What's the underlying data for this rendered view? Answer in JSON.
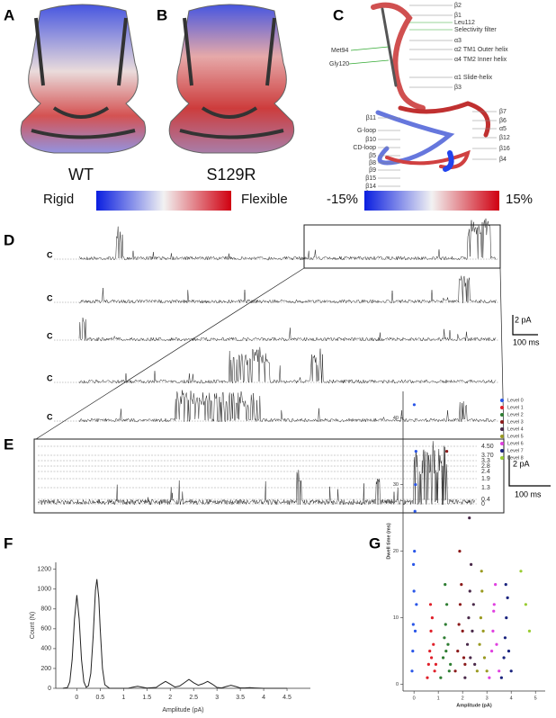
{
  "panel_labels": [
    "A",
    "B",
    "C",
    "D",
    "E",
    "F",
    "G"
  ],
  "structures": {
    "wt": "WT",
    "mutant": "S129R"
  },
  "colorbars": {
    "rigid": "Rigid",
    "flexible": "Flexible",
    "min": "-15%",
    "max": "15%"
  },
  "topology_labels": {
    "right": [
      "β2",
      "β1",
      "Leu112",
      "Selectivity filter",
      "α3",
      "α2 TM1 Outer helix",
      "α4 TM2 Inner helix",
      "α1 Slide-helix",
      "β3"
    ],
    "left_top": [
      "Met94",
      "Gly120"
    ],
    "left": [
      "β11",
      "G-loop",
      "β10",
      "CD-loop",
      "β5",
      "β8",
      "β9",
      "β15",
      "β14",
      "β13"
    ],
    "right_low": [
      "β7",
      "β6",
      "α5",
      "β12",
      "β16",
      "β4"
    ]
  },
  "traces": {
    "closed": "C",
    "scale_current": "2 pA",
    "scale_time": "100 ms"
  },
  "levels": [
    "4.50",
    "3.70",
    "3.3",
    "2.8",
    "2.4",
    "1.9",
    "1.3",
    "0.4",
    "0"
  ],
  "chart_data": [
    {
      "type": "line",
      "xlabel": "Amplitude (pA)",
      "ylabel": "Count (N)",
      "color": "#222",
      "x": [
        -0.3,
        -0.2,
        -0.15,
        -0.1,
        -0.05,
        0,
        0.05,
        0.1,
        0.15,
        0.2,
        0.25,
        0.3,
        0.35,
        0.4,
        0.43,
        0.47,
        0.5,
        0.55,
        0.6,
        0.7,
        0.9,
        1.1,
        1.2,
        1.3,
        1.4,
        1.5,
        1.7,
        1.8,
        1.9,
        2.0,
        2.1,
        2.2,
        2.3,
        2.4,
        2.5,
        2.6,
        2.7,
        2.8,
        2.9,
        3.0,
        3.1,
        3.2,
        3.3,
        3.4,
        3.5,
        3.6,
        3.7,
        3.8,
        4.0,
        4.5
      ],
      "values": [
        0,
        8,
        66,
        289,
        699,
        940,
        699,
        289,
        66,
        10,
        25,
        149,
        516,
        989,
        1100,
        910,
        616,
        200,
        36,
        0,
        0,
        0,
        12,
        20,
        12,
        3,
        9,
        42,
        70,
        43,
        13,
        23,
        55,
        90,
        56,
        31,
        46,
        70,
        42,
        9,
        4,
        18,
        30,
        18,
        4,
        4,
        6,
        4,
        0,
        0
      ],
      "xlim": [
        -0.45,
        5
      ],
      "ylim": [
        0,
        1270
      ],
      "xticks": [
        0,
        0.5,
        1,
        1.5,
        2,
        2.5,
        3,
        3.5,
        4,
        4.5
      ],
      "yticks": [
        0,
        200,
        400,
        600,
        800,
        1000,
        1200
      ]
    },
    {
      "type": "scatter",
      "xlabel": "Amplitude (pA)",
      "ylabel": "Dwell time (ms)",
      "legend": "upper right",
      "xlim": [
        -0.45,
        5.4
      ],
      "ylim": [
        -1,
        44
      ],
      "xticks": [
        0,
        1,
        2,
        3,
        4,
        5
      ],
      "yticks": [
        0,
        10,
        20,
        30,
        40
      ],
      "series": [
        {
          "name": "Level 0",
          "color": "#2a56e8",
          "x": [
            -0.08,
            -0.05,
            -0.03,
            0,
            0.02,
            0.04,
            0.06,
            0.08,
            0.1,
            -0.02,
            0.01,
            0.05
          ],
          "values": [
            2,
            5,
            9,
            14,
            20,
            26,
            30,
            35,
            12,
            18,
            42,
            8
          ]
        },
        {
          "name": "Level 1",
          "color": "#e0202a",
          "x": [
            0.55,
            0.6,
            0.65,
            0.7,
            0.75,
            0.8,
            0.85,
            0.68,
            0.72,
            0.9
          ],
          "values": [
            1,
            3,
            5,
            8,
            10,
            6,
            2,
            12,
            4,
            3
          ]
        },
        {
          "name": "Level 2",
          "color": "#2e7d32",
          "x": [
            1.1,
            1.2,
            1.25,
            1.3,
            1.35,
            1.4,
            1.5,
            1.28,
            1.45,
            1.32
          ],
          "values": [
            1,
            4,
            7,
            9,
            12,
            6,
            3,
            15,
            2,
            5
          ]
        },
        {
          "name": "Level 3",
          "color": "#8b1a1a",
          "x": [
            1.7,
            1.8,
            1.85,
            1.9,
            1.95,
            2.0,
            2.1,
            1.88,
            1.35,
            2.05
          ],
          "values": [
            2,
            5,
            9,
            12,
            15,
            8,
            3,
            20,
            35,
            4
          ]
        },
        {
          "name": "Level 4",
          "color": "#4a2a4a",
          "x": [
            2.1,
            2.2,
            2.25,
            2.3,
            2.35,
            2.4,
            2.5,
            2.28,
            2.32,
            2.45
          ],
          "values": [
            1,
            6,
            10,
            14,
            18,
            8,
            3,
            25,
            4,
            12
          ]
        },
        {
          "name": "Level 5",
          "color": "#9a9a20",
          "x": [
            2.6,
            2.7,
            2.75,
            2.8,
            2.85,
            2.9,
            3.0,
            2.78
          ],
          "values": [
            2,
            6,
            10,
            14,
            8,
            4,
            2,
            17
          ]
        },
        {
          "name": "Level 6",
          "color": "#e040e0",
          "x": [
            3.1,
            3.2,
            3.25,
            3.3,
            3.35,
            3.4,
            3.5,
            3.28
          ],
          "values": [
            1,
            5,
            8,
            12,
            15,
            6,
            2,
            11
          ]
        },
        {
          "name": "Level 7",
          "color": "#1a237e",
          "x": [
            3.6,
            3.7,
            3.75,
            3.8,
            3.85,
            3.9,
            4.0,
            3.78
          ],
          "values": [
            1,
            4,
            7,
            10,
            13,
            5,
            2,
            15
          ]
        },
        {
          "name": "Level 8",
          "color": "#9acd32",
          "x": [
            4.4,
            4.6,
            4.75
          ],
          "values": [
            17,
            12,
            8
          ]
        }
      ]
    }
  ]
}
